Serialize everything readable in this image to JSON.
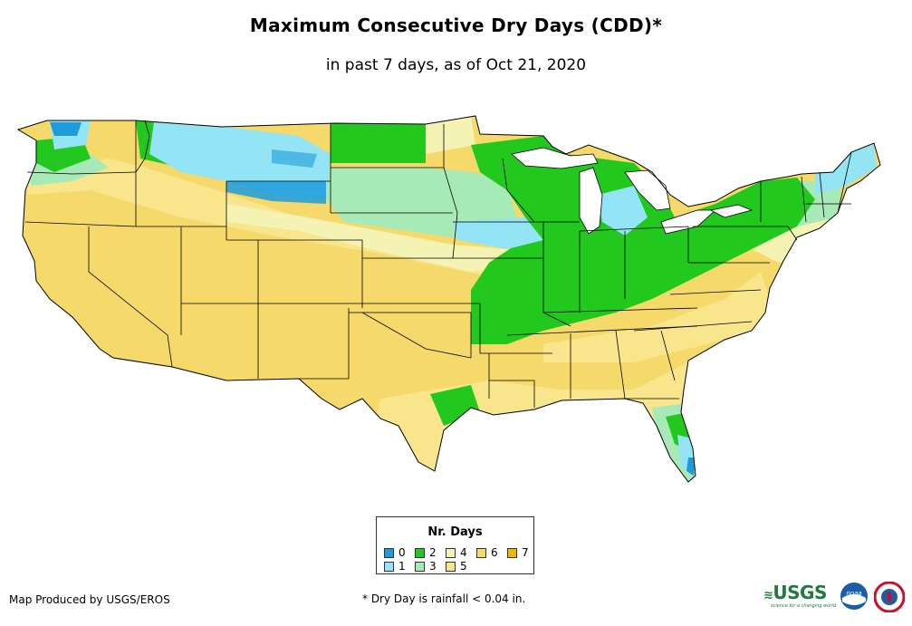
{
  "title": "Maximum Consecutive Dry Days (CDD)*",
  "subtitle": "in past 7 days, as of Oct 21, 2020",
  "legend": {
    "title": "Nr. Days",
    "items": [
      {
        "label": "0",
        "color": "#1f9bdc"
      },
      {
        "label": "1",
        "color": "#93e4f4"
      },
      {
        "label": "2",
        "color": "#22c81e"
      },
      {
        "label": "3",
        "color": "#a8eab7"
      },
      {
        "label": "4",
        "color": "#f4f3b3"
      },
      {
        "label": "5",
        "color": "#f9e58b"
      },
      {
        "label": "6",
        "color": "#f6d96b"
      },
      {
        "label": "7",
        "color": "#f0b800"
      }
    ]
  },
  "producer": "Map Produced by USGS/EROS",
  "footnote": "* Dry Day is rainfall < 0.04 in.",
  "logos": {
    "usgs_text": "USGS",
    "usgs_tagline": "science for a changing world",
    "noaa_text": "noaa"
  }
}
